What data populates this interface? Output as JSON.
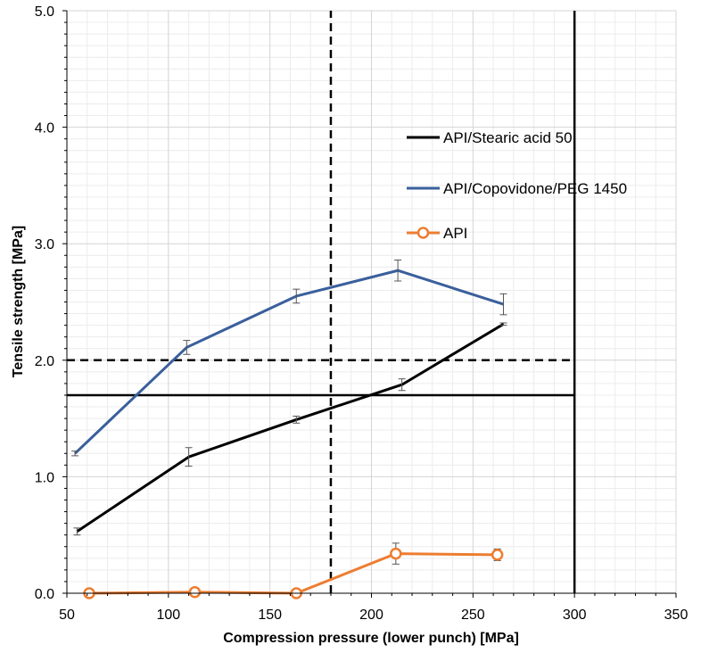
{
  "chart_data": {
    "type": "line",
    "xlabel": "Compression pressure (lower punch) [MPa]",
    "ylabel": "Tensile strength [MPa]",
    "xlim": [
      50,
      350
    ],
    "ylim": [
      0,
      5
    ],
    "x_ticks": [
      50,
      100,
      150,
      200,
      250,
      300,
      350
    ],
    "y_ticks": [
      0,
      1,
      2,
      3,
      4,
      5
    ],
    "x_tick_labels": [
      "50",
      "100",
      "150",
      "200",
      "250",
      "300",
      "350"
    ],
    "y_tick_labels": [
      "0.0",
      "1.0",
      "2.0",
      "3.0",
      "4.0",
      "5.0"
    ],
    "grid": true,
    "legend_position": "upper-right",
    "series": [
      {
        "name": "API/Stearic acid 50",
        "color": "#000000",
        "marker": "none",
        "points": [
          {
            "x": 55,
            "y": 0.53,
            "err": 0.03
          },
          {
            "x": 110,
            "y": 1.17,
            "err": 0.08
          },
          {
            "x": 163,
            "y": 1.49,
            "err": 0.03
          },
          {
            "x": 215,
            "y": 1.79,
            "err": 0.05
          },
          {
            "x": 265,
            "y": 2.31,
            "err": 0.01
          }
        ]
      },
      {
        "name": "API/Copovidone/PEG 1450",
        "color": "#3a5f9c",
        "marker": "none",
        "points": [
          {
            "x": 54,
            "y": 1.2,
            "err": 0.02
          },
          {
            "x": 109,
            "y": 2.11,
            "err": 0.06
          },
          {
            "x": 163,
            "y": 2.55,
            "err": 0.06
          },
          {
            "x": 213,
            "y": 2.77,
            "err": 0.09
          },
          {
            "x": 265,
            "y": 2.48,
            "err": 0.09
          }
        ]
      },
      {
        "name": "API",
        "color": "#ed7d31",
        "marker": "circle",
        "points": [
          {
            "x": 61,
            "y": 0.0,
            "err": 0.0
          },
          {
            "x": 113,
            "y": 0.01,
            "err": 0.02
          },
          {
            "x": 163,
            "y": 0.0,
            "err": 0.0
          },
          {
            "x": 212,
            "y": 0.34,
            "err": 0.09
          },
          {
            "x": 262,
            "y": 0.33,
            "err": 0.05
          }
        ]
      }
    ],
    "reference_lines": [
      {
        "orientation": "horizontal",
        "value": 1.7,
        "style": "solid",
        "from": 50,
        "to": 300
      },
      {
        "orientation": "horizontal",
        "value": 2.0,
        "style": "dashed",
        "from": 50,
        "to": 300
      },
      {
        "orientation": "vertical",
        "value": 180,
        "style": "dashed",
        "from": 0,
        "to": 5
      },
      {
        "orientation": "vertical",
        "value": 300,
        "style": "solid",
        "from": 0,
        "to": 5
      }
    ]
  }
}
